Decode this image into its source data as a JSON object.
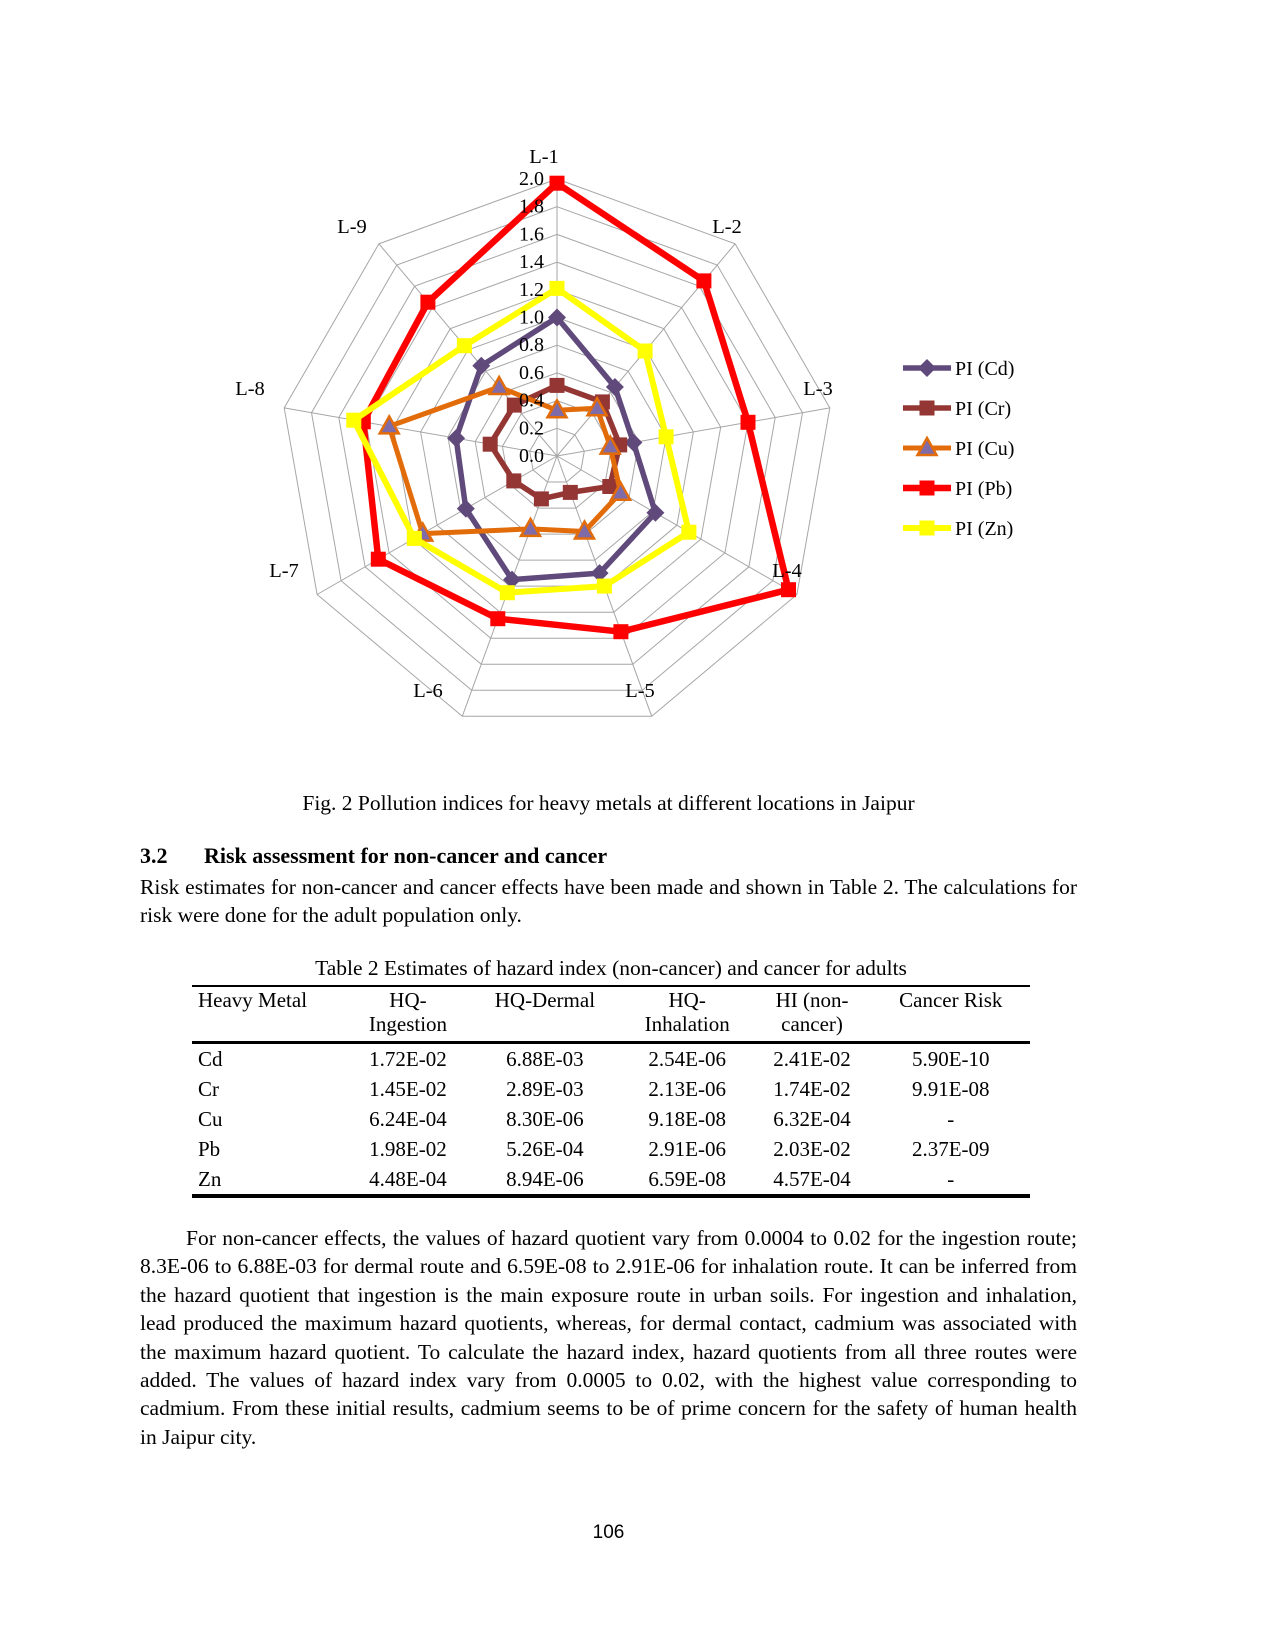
{
  "figure": {
    "caption": "Fig. 2 Pollution indices for heavy metals at different locations in Jaipur"
  },
  "chart_data": {
    "type": "radar",
    "title": "",
    "categories": [
      "L-1",
      "L-2",
      "L-3",
      "L-4",
      "L-5",
      "L-6",
      "L-7",
      "L-8",
      "L-9"
    ],
    "axis_range": [
      0.0,
      2.0
    ],
    "axis_tick_step": 0.2,
    "grid": true,
    "grid_color": "#A6A6A6",
    "legend_position": "right",
    "series": [
      {
        "name": "PI (Cd)",
        "color": "#604A7B",
        "marker": "diamond",
        "values": [
          1.0,
          0.65,
          0.56,
          0.82,
          0.9,
          0.95,
          0.76,
          0.74,
          0.85
        ]
      },
      {
        "name": "PI (Cr)",
        "color": "#943634",
        "marker": "square",
        "values": [
          0.51,
          0.51,
          0.46,
          0.44,
          0.28,
          0.33,
          0.36,
          0.49,
          0.48
        ]
      },
      {
        "name": "PI (Cu)",
        "color": "#E36C0A",
        "marker": "triangle",
        "marker_fill": "#7E6BA8",
        "values": [
          0.33,
          0.45,
          0.39,
          0.53,
          0.58,
          0.56,
          1.12,
          1.23,
          0.65
        ]
      },
      {
        "name": "PI (Pb)",
        "color": "#FF0000",
        "marker": "square",
        "values": [
          1.97,
          1.65,
          1.4,
          1.93,
          1.35,
          1.25,
          1.49,
          1.42,
          1.45
        ]
      },
      {
        "name": "PI (Zn)",
        "color": "#FFFF00",
        "marker": "square",
        "values": [
          1.21,
          0.99,
          0.8,
          1.1,
          1.0,
          1.05,
          1.19,
          1.49,
          1.04
        ]
      }
    ]
  },
  "section": {
    "number": "3.2",
    "title": "Risk assessment for non-cancer and cancer"
  },
  "paragraphs": {
    "intro": "Risk estimates for non-cancer and cancer effects have been made and shown in Table 2. The calculations for risk were done for the adult population only.",
    "discussion": "For non-cancer effects, the values of hazard quotient vary from 0.0004 to 0.02 for the ingestion route; 8.3E-06 to 6.88E-03 for dermal route and 6.59E-08 to 2.91E-06 for inhalation route. It can be inferred from the hazard quotient that ingestion is the main exposure route in urban soils. For ingestion and inhalation, lead produced the maximum hazard quotients, whereas, for dermal contact, cadmium was associated with the maximum hazard quotient. To calculate the hazard index, hazard quotients from all three routes were added. The values of hazard index vary from 0.0005 to 0.02, with the highest value corresponding to cadmium. From these initial results, cadmium seems to be of prime concern for the safety of human health in Jaipur city."
  },
  "table": {
    "title": "Table 2 Estimates of hazard index (non-cancer) and cancer for adults",
    "headers": [
      "Heavy Metal",
      "HQ-\nIngestion",
      "HQ-Dermal",
      "HQ-\nInhalation",
      "HI (non-\ncancer)",
      "Cancer Risk"
    ],
    "rows": [
      [
        "Cd",
        "1.72E-02",
        "6.88E-03",
        "2.54E-06",
        "2.41E-02",
        "5.90E-10"
      ],
      [
        "Cr",
        "1.45E-02",
        "2.89E-03",
        "2.13E-06",
        "1.74E-02",
        "9.91E-08"
      ],
      [
        "Cu",
        "6.24E-04",
        "8.30E-06",
        "9.18E-08",
        "6.32E-04",
        "-"
      ],
      [
        "Pb",
        "1.98E-02",
        "5.26E-04",
        "2.91E-06",
        "2.03E-02",
        "2.37E-09"
      ],
      [
        "Zn",
        "4.48E-04",
        "8.94E-06",
        "6.59E-08",
        "4.57E-04",
        "-"
      ]
    ]
  },
  "page": {
    "number": "106"
  }
}
